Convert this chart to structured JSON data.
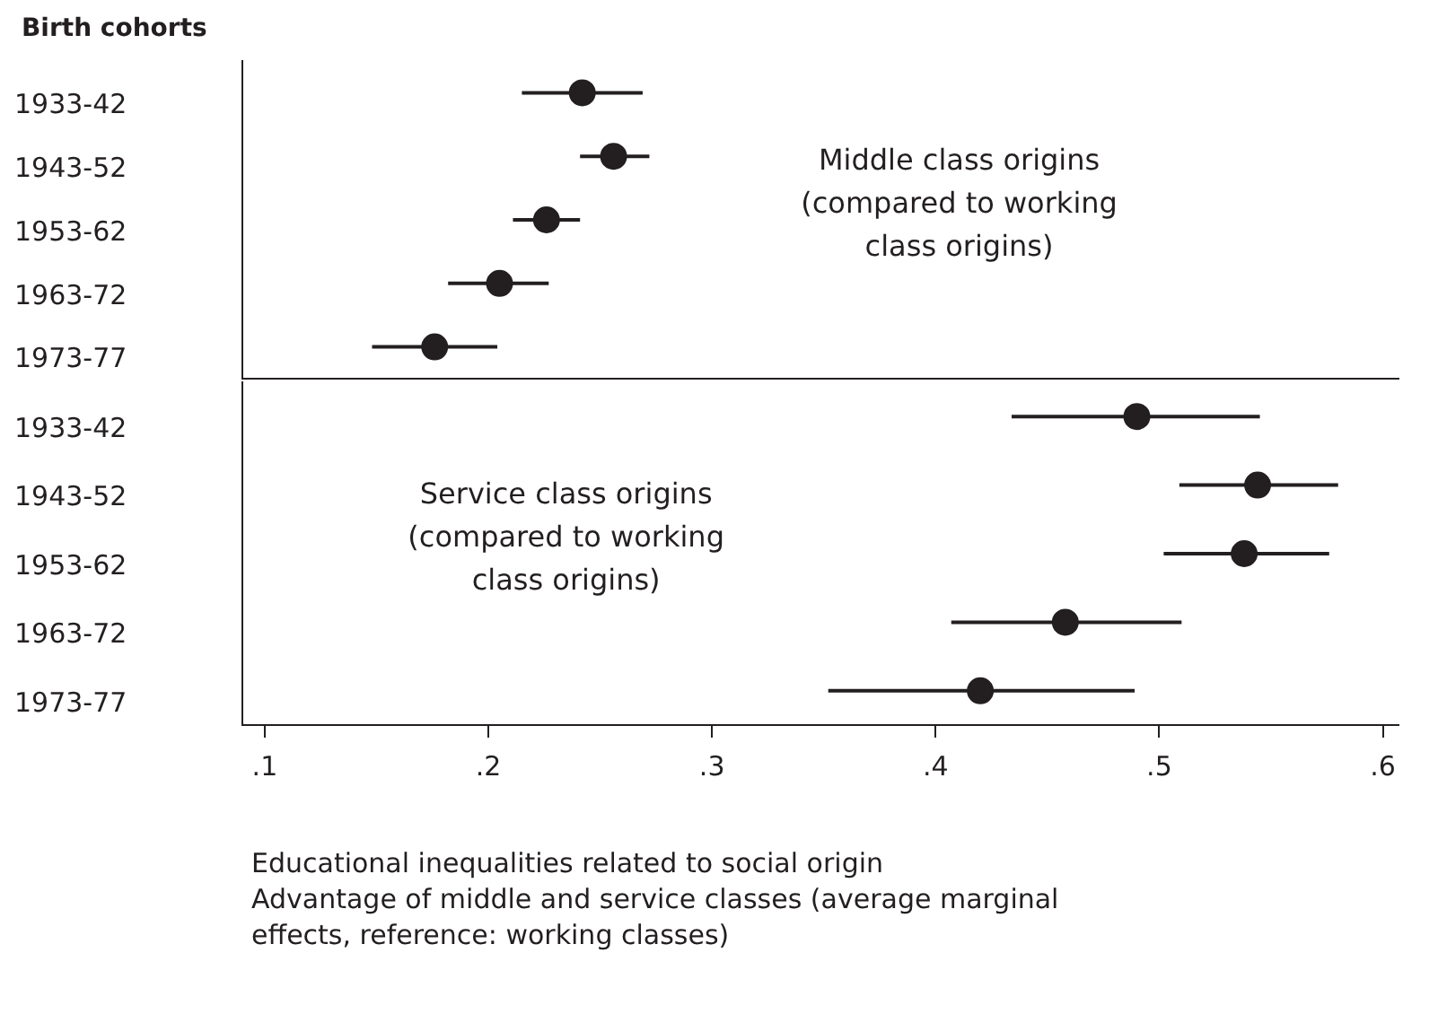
{
  "chart_data": [
    {
      "type": "scatter",
      "orientation": "horizontal",
      "ylabel": "Birth cohorts",
      "categories": [
        "1933-42",
        "1943-52",
        "1953-62",
        "1963-72",
        "1973-77"
      ],
      "xlim": [
        0.09,
        0.607
      ],
      "tick_labels": "y",
      "marker": "circle",
      "grid": false,
      "legend": false,
      "series": [
        {
          "color": "#231f20",
          "values": [
            0.242,
            0.256,
            0.226,
            0.205,
            0.176
          ],
          "errors": [
            [
              0.215,
              0.269
            ],
            [
              0.241,
              0.272
            ],
            [
              0.211,
              0.241
            ],
            [
              0.182,
              0.227
            ],
            [
              0.148,
              0.204
            ]
          ]
        }
      ],
      "annotations": [
        "Middle class origins (compared to working class origins)"
      ]
    },
    {
      "type": "scatter",
      "orientation": "horizontal",
      "categories": [
        "1933-42",
        "1943-52",
        "1953-62",
        "1963-72",
        "1973-77"
      ],
      "xlim": [
        0.09,
        0.607
      ],
      "xticks": [
        {
          "value": 0.1,
          "label": ".1"
        },
        {
          "value": 0.2,
          "label": ".2"
        },
        {
          "value": 0.3,
          "label": ".3"
        },
        {
          "value": 0.4,
          "label": ".4"
        },
        {
          "value": 0.5,
          "label": ".5"
        },
        {
          "value": 0.6,
          "label": ".6"
        }
      ],
      "marker": "circle",
      "grid": false,
      "legend": false,
      "series": [
        {
          "color": "#231f20",
          "values": [
            0.49,
            0.544,
            0.538,
            0.458,
            0.42
          ],
          "errors": [
            [
              0.434,
              0.545
            ],
            [
              0.509,
              0.58
            ],
            [
              0.502,
              0.576
            ],
            [
              0.407,
              0.51
            ],
            [
              0.352,
              0.489
            ]
          ]
        }
      ],
      "annotations": [
        "Service class origins (compared to working class origins)",
        "Educational inequalities related to social origin",
        "Advantage of middle and service classes (average marginal effects, reference: working classes)"
      ]
    }
  ]
}
